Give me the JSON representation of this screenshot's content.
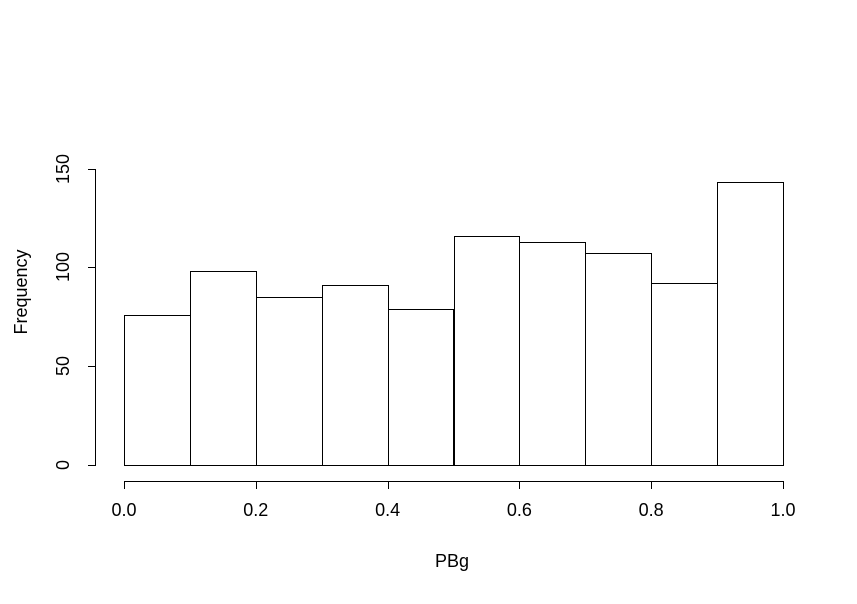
{
  "figure": {
    "background": "#ffffff"
  },
  "chart_data": {
    "type": "bar",
    "subtype": "histogram",
    "title": "",
    "xlabel": "PBg",
    "ylabel": "Frequency",
    "bin_edges": [
      0.0,
      0.1,
      0.2,
      0.3,
      0.4,
      0.5,
      0.6,
      0.7,
      0.8,
      0.9,
      1.0
    ],
    "values": [
      76,
      98,
      85,
      91,
      79,
      116,
      113,
      107,
      92,
      143
    ],
    "xlim": [
      0.0,
      1.0
    ],
    "ylim": [
      0,
      150
    ],
    "x_ticks": [
      {
        "value": 0.0,
        "label": "0.0"
      },
      {
        "value": 0.2,
        "label": "0.2"
      },
      {
        "value": 0.4,
        "label": "0.4"
      },
      {
        "value": 0.6,
        "label": "0.6"
      },
      {
        "value": 0.8,
        "label": "0.8"
      },
      {
        "value": 1.0,
        "label": "1.0"
      }
    ],
    "y_ticks": [
      {
        "value": 0,
        "label": "0"
      },
      {
        "value": 50,
        "label": "50"
      },
      {
        "value": 100,
        "label": "100"
      },
      {
        "value": 150,
        "label": "150"
      }
    ],
    "grid": false,
    "legend": "none",
    "bar_fill": "#ffffff",
    "bar_stroke": "#000000",
    "axis_color": "#000000",
    "text_color": "#000000"
  }
}
